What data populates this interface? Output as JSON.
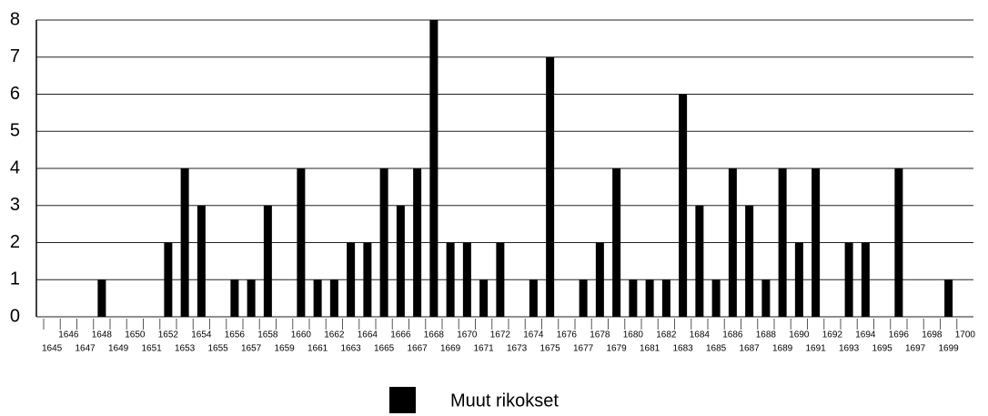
{
  "chart_data": {
    "type": "bar",
    "categories": [
      "1645",
      "1646",
      "1647",
      "1648",
      "1649",
      "1650",
      "1651",
      "1652",
      "1653",
      "1654",
      "1655",
      "1656",
      "1657",
      "1658",
      "1659",
      "1660",
      "1661",
      "1662",
      "1663",
      "1664",
      "1665",
      "1666",
      "1667",
      "1668",
      "1669",
      "1670",
      "1671",
      "1672",
      "1673",
      "1674",
      "1675",
      "1676",
      "1677",
      "1678",
      "1679",
      "1680",
      "1681",
      "1682",
      "1683",
      "1684",
      "1685",
      "1686",
      "1687",
      "1688",
      "1689",
      "1690",
      "1691",
      "1692",
      "1693",
      "1694",
      "1695",
      "1696",
      "1697",
      "1698",
      "1699",
      "1700"
    ],
    "series": [
      {
        "name": "Muut rikokset",
        "color": "#000000",
        "values": [
          0,
          0,
          0,
          1,
          0,
          0,
          0,
          2,
          4,
          3,
          0,
          1,
          1,
          3,
          0,
          4,
          1,
          1,
          2,
          2,
          4,
          3,
          4,
          8,
          2,
          2,
          1,
          2,
          0,
          1,
          7,
          0,
          1,
          2,
          4,
          1,
          1,
          1,
          6,
          3,
          1,
          4,
          3,
          1,
          4,
          2,
          4,
          0,
          2,
          2,
          0,
          4,
          0,
          0,
          1,
          0
        ]
      }
    ],
    "ylim": [
      0,
      8
    ],
    "yticks": [
      0,
      1,
      2,
      3,
      4,
      5,
      6,
      7,
      8
    ],
    "grid": true,
    "legend": "bottom"
  }
}
